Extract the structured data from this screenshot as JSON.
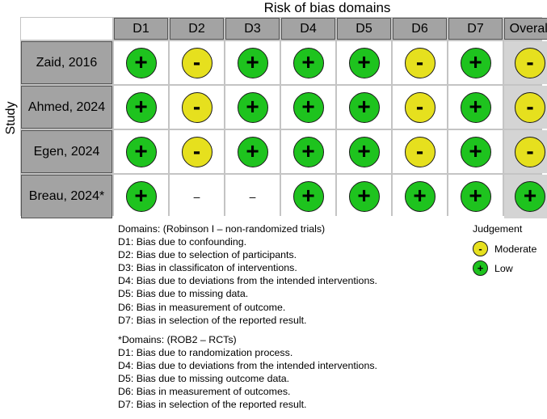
{
  "title": "Risk of bias domains",
  "y_label": "Study",
  "columns": [
    "D1",
    "D2",
    "D3",
    "D4",
    "D5",
    "D6",
    "D7",
    "Overall"
  ],
  "rows": [
    {
      "study": "Zaid, 2016",
      "judgements": [
        "low",
        "moderate",
        "low",
        "low",
        "low",
        "moderate",
        "low",
        "moderate"
      ]
    },
    {
      "study": "Ahmed, 2024",
      "judgements": [
        "low",
        "moderate",
        "low",
        "low",
        "low",
        "moderate",
        "low",
        "moderate"
      ]
    },
    {
      "study": "Egen, 2024",
      "judgements": [
        "low",
        "moderate",
        "low",
        "low",
        "low",
        "moderate",
        "low",
        "moderate"
      ]
    },
    {
      "study": "Breau, 2024*",
      "judgements": [
        "low",
        "none",
        "none",
        "low",
        "low",
        "low",
        "low",
        "low"
      ]
    }
  ],
  "symbols": {
    "low": "+",
    "moderate": "-",
    "none": "–"
  },
  "colors": {
    "low": "#1ec31e",
    "moderate": "#e6e01e",
    "header": "#a3a3a3",
    "overall_bg": "#d4d4d4"
  },
  "notes": {
    "block1": [
      "Domains: (Robinson I – non-randomized trials)",
      "D1: Bias due to confounding.",
      "D2: Bias due to selection of participants.",
      "D3: Bias in classificaton of interventions.",
      "D4: Bias due to deviations from the intended interventions.",
      "D5: Bias due to missing data.",
      "D6: Bias in measurement of outcome.",
      "D7: Bias in selection of the reported result."
    ],
    "block2": [
      "*Domains: (ROB2 – RCTs)",
      "D1: Bias due to randomization process.",
      "D4: Bias due to deviations from the intended interventions.",
      "D5: Bias due to missing outcome data.",
      "D6: Bias in measurement of outcomes.",
      "D7: Bias in selection of the reported result."
    ]
  },
  "legend": {
    "title": "Judgement",
    "items": [
      {
        "label": "Moderate",
        "level": "moderate"
      },
      {
        "label": "Low",
        "level": "low"
      }
    ]
  }
}
